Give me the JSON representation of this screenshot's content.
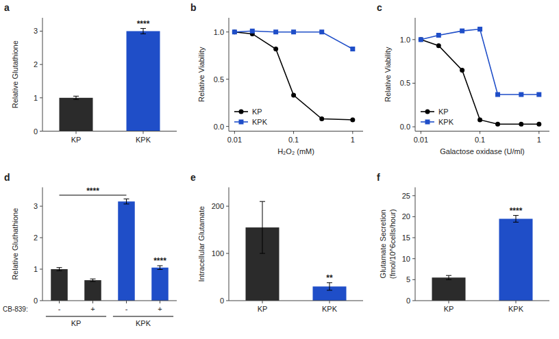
{
  "chart_data": [
    {
      "type": "bar",
      "title": "a",
      "categories": [
        "KP",
        "KPK"
      ],
      "values": [
        1.0,
        3.0
      ],
      "errors": [
        0.05,
        0.08
      ],
      "colors": [
        "#2b2b2b",
        "#1f4ec8"
      ],
      "ylabel": "Relative Glutathione",
      "ylim": [
        0,
        3.4
      ],
      "yticks": [
        0,
        1,
        2,
        3
      ],
      "annotations": [
        {
          "text": "****",
          "category_index": 1
        }
      ]
    },
    {
      "type": "line",
      "title": "b",
      "xlabel": "H₂O₂ (mM)",
      "ylabel": "Relative Viability",
      "log": "x",
      "x": [
        0.01,
        0.02,
        0.05,
        0.1,
        0.3,
        1.0
      ],
      "series": [
        {
          "name": "KP",
          "color": "black",
          "marker": "circle",
          "line_style": "solid",
          "values": [
            1.0,
            0.98,
            0.82,
            0.33,
            0.08,
            0.07
          ]
        },
        {
          "name": "KPK",
          "color": "#1f4ec8",
          "marker": "square",
          "line_style": "solid",
          "values": [
            1.0,
            1.01,
            1.0,
            1.0,
            1.0,
            0.82
          ]
        }
      ],
      "xlim": [
        0.008,
        1.5
      ],
      "xticks": [
        0.01,
        0.1,
        1
      ],
      "ylim": [
        -0.05,
        1.15
      ],
      "yticks": [
        {
          "value": 0.0,
          "label": "0.0"
        },
        0.5,
        {
          "value": 1.0,
          "label": "1.0"
        }
      ],
      "legend": "lower left"
    },
    {
      "type": "line",
      "title": "c",
      "xlabel": "Galactose oxidase (U/ml)",
      "ylabel": "Relative Viability",
      "log": "x",
      "x": [
        0.01,
        0.02,
        0.05,
        0.1,
        0.2,
        0.5,
        1.0
      ],
      "series": [
        {
          "name": "KP",
          "color": "black",
          "marker": "circle",
          "line_style": "solid",
          "values": [
            1.0,
            0.93,
            0.65,
            0.08,
            0.03,
            0.03,
            0.03
          ]
        },
        {
          "name": "KPK",
          "color": "#1f4ec8",
          "marker": "square",
          "line_style": "solid",
          "values": [
            1.0,
            1.05,
            1.1,
            1.12,
            0.37,
            0.37,
            0.37
          ]
        }
      ],
      "xlim": [
        0.008,
        1.5
      ],
      "xticks": [
        0.01,
        0.1,
        1
      ],
      "ylim": [
        -0.05,
        1.25
      ],
      "yticks": [
        {
          "value": 0.0,
          "label": "0.0"
        },
        0.5,
        {
          "value": 1.0,
          "label": "1.0"
        }
      ],
      "legend": "lower left"
    },
    {
      "type": "bar",
      "title": "d",
      "categories": [
        "-",
        "+",
        "-",
        "+"
      ],
      "values": [
        1.0,
        0.65,
        3.15,
        1.05
      ],
      "errors": [
        0.05,
        0.04,
        0.08,
        0.06
      ],
      "colors": [
        "#2b2b2b",
        "#2b2b2b",
        "#1f4ec8",
        "#1f4ec8"
      ],
      "ylabel": "Relative Gluthathione",
      "ylim": [
        0,
        3.6
      ],
      "yticks": [
        0,
        1,
        2,
        3
      ],
      "annotations": [
        {
          "text": "CB-839:"
        },
        {
          "text": "KP",
          "from": 0,
          "to": 1
        },
        {
          "text": "KPK",
          "from": 2,
          "to": 3
        },
        {
          "text": "****",
          "from": 0,
          "to": 2,
          "y": 3.35
        },
        {
          "text": "****",
          "category_index": 3
        }
      ]
    },
    {
      "type": "bar",
      "title": "e",
      "categories": [
        "KP",
        "KPK"
      ],
      "values": [
        155,
        30
      ],
      "errors": [
        55,
        8
      ],
      "colors": [
        "#2b2b2b",
        "#1f4ec8"
      ],
      "ylabel": "Intracellular Glutamate",
      "ylim": [
        0,
        240
      ],
      "yticks": [
        0,
        100,
        200
      ],
      "annotations": [
        {
          "text": "**",
          "category_index": 1
        }
      ]
    },
    {
      "type": "bar",
      "title": "f",
      "categories": [
        "KP",
        "KPK"
      ],
      "values": [
        5.5,
        19.5
      ],
      "errors": [
        0.5,
        0.8
      ],
      "colors": [
        "#2b2b2b",
        "#1f4ec8"
      ],
      "ylabel": "Glutamate Secretion\n(fmol/10^6cells/hour)",
      "ylim": [
        0,
        27
      ],
      "yticks": [
        0,
        5,
        10,
        15,
        20,
        25
      ],
      "annotations": [
        {
          "text": "****",
          "category_index": 1
        }
      ]
    }
  ]
}
